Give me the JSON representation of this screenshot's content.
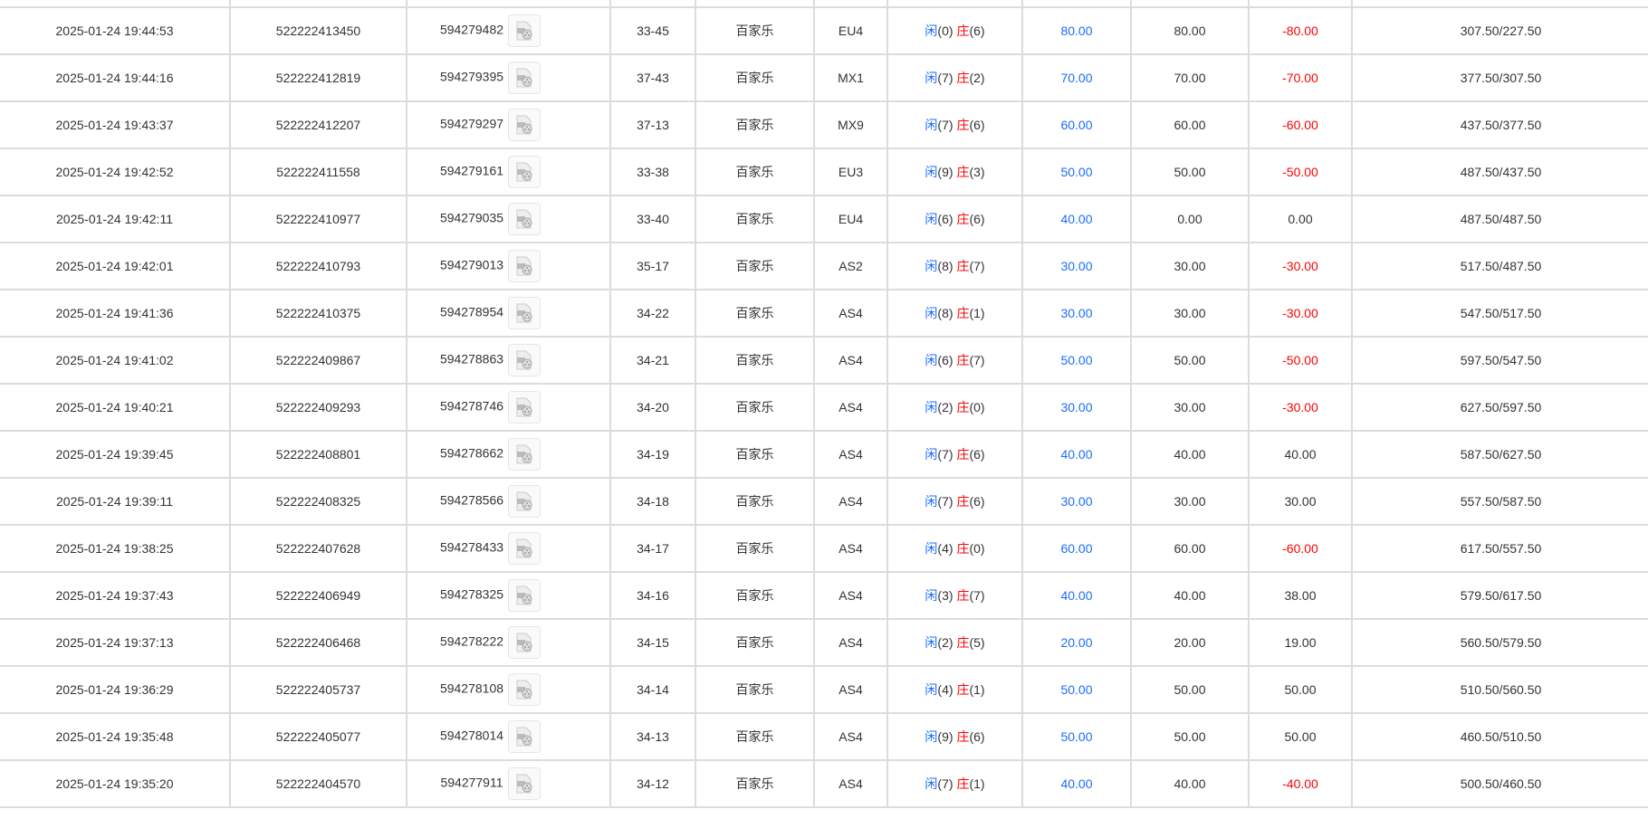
{
  "colors": {
    "player": "#1a6cff",
    "banker": "#ff0000",
    "bet": "#1a6cff",
    "negative": "#ff0000"
  },
  "labels": {
    "player": "闲",
    "banker": "庄"
  },
  "icon": "video-file-icon",
  "rows": [
    {
      "time": "2025-01-24 19:44:53",
      "order": "522222413450",
      "round": "594279482",
      "shoe": "33-45",
      "game": "百家乐",
      "table": "EU4",
      "p": "(0)",
      "b": "(6)",
      "bet": "80.00",
      "valid": "80.00",
      "win": "-80.00",
      "neg": true,
      "balance": "307.50/227.50"
    },
    {
      "time": "2025-01-24 19:44:16",
      "order": "522222412819",
      "round": "594279395",
      "shoe": "37-43",
      "game": "百家乐",
      "table": "MX1",
      "p": "(7)",
      "b": "(2)",
      "bet": "70.00",
      "valid": "70.00",
      "win": "-70.00",
      "neg": true,
      "balance": "377.50/307.50"
    },
    {
      "time": "2025-01-24 19:43:37",
      "order": "522222412207",
      "round": "594279297",
      "shoe": "37-13",
      "game": "百家乐",
      "table": "MX9",
      "p": "(7)",
      "b": "(6)",
      "bet": "60.00",
      "valid": "60.00",
      "win": "-60.00",
      "neg": true,
      "balance": "437.50/377.50"
    },
    {
      "time": "2025-01-24 19:42:52",
      "order": "522222411558",
      "round": "594279161",
      "shoe": "33-38",
      "game": "百家乐",
      "table": "EU3",
      "p": "(9)",
      "b": "(3)",
      "bet": "50.00",
      "valid": "50.00",
      "win": "-50.00",
      "neg": true,
      "balance": "487.50/437.50"
    },
    {
      "time": "2025-01-24 19:42:11",
      "order": "522222410977",
      "round": "594279035",
      "shoe": "33-40",
      "game": "百家乐",
      "table": "EU4",
      "p": "(6)",
      "b": "(6)",
      "bet": "40.00",
      "valid": "0.00",
      "win": "0.00",
      "neg": false,
      "balance": "487.50/487.50"
    },
    {
      "time": "2025-01-24 19:42:01",
      "order": "522222410793",
      "round": "594279013",
      "shoe": "35-17",
      "game": "百家乐",
      "table": "AS2",
      "p": "(8)",
      "b": "(7)",
      "bet": "30.00",
      "valid": "30.00",
      "win": "-30.00",
      "neg": true,
      "balance": "517.50/487.50"
    },
    {
      "time": "2025-01-24 19:41:36",
      "order": "522222410375",
      "round": "594278954",
      "shoe": "34-22",
      "game": "百家乐",
      "table": "AS4",
      "p": "(8)",
      "b": "(1)",
      "bet": "30.00",
      "valid": "30.00",
      "win": "-30.00",
      "neg": true,
      "balance": "547.50/517.50"
    },
    {
      "time": "2025-01-24 19:41:02",
      "order": "522222409867",
      "round": "594278863",
      "shoe": "34-21",
      "game": "百家乐",
      "table": "AS4",
      "p": "(6)",
      "b": "(7)",
      "bet": "50.00",
      "valid": "50.00",
      "win": "-50.00",
      "neg": true,
      "balance": "597.50/547.50"
    },
    {
      "time": "2025-01-24 19:40:21",
      "order": "522222409293",
      "round": "594278746",
      "shoe": "34-20",
      "game": "百家乐",
      "table": "AS4",
      "p": "(2)",
      "b": "(0)",
      "bet": "30.00",
      "valid": "30.00",
      "win": "-30.00",
      "neg": true,
      "balance": "627.50/597.50"
    },
    {
      "time": "2025-01-24 19:39:45",
      "order": "522222408801",
      "round": "594278662",
      "shoe": "34-19",
      "game": "百家乐",
      "table": "AS4",
      "p": "(7)",
      "b": "(6)",
      "bet": "40.00",
      "valid": "40.00",
      "win": "40.00",
      "neg": false,
      "balance": "587.50/627.50"
    },
    {
      "time": "2025-01-24 19:39:11",
      "order": "522222408325",
      "round": "594278566",
      "shoe": "34-18",
      "game": "百家乐",
      "table": "AS4",
      "p": "(7)",
      "b": "(6)",
      "bet": "30.00",
      "valid": "30.00",
      "win": "30.00",
      "neg": false,
      "balance": "557.50/587.50"
    },
    {
      "time": "2025-01-24 19:38:25",
      "order": "522222407628",
      "round": "594278433",
      "shoe": "34-17",
      "game": "百家乐",
      "table": "AS4",
      "p": "(4)",
      "b": "(0)",
      "bet": "60.00",
      "valid": "60.00",
      "win": "-60.00",
      "neg": true,
      "balance": "617.50/557.50"
    },
    {
      "time": "2025-01-24 19:37:43",
      "order": "522222406949",
      "round": "594278325",
      "shoe": "34-16",
      "game": "百家乐",
      "table": "AS4",
      "p": "(3)",
      "b": "(7)",
      "bet": "40.00",
      "valid": "40.00",
      "win": "38.00",
      "neg": false,
      "balance": "579.50/617.50"
    },
    {
      "time": "2025-01-24 19:37:13",
      "order": "522222406468",
      "round": "594278222",
      "shoe": "34-15",
      "game": "百家乐",
      "table": "AS4",
      "p": "(2)",
      "b": "(5)",
      "bet": "20.00",
      "valid": "20.00",
      "win": "19.00",
      "neg": false,
      "balance": "560.50/579.50"
    },
    {
      "time": "2025-01-24 19:36:29",
      "order": "522222405737",
      "round": "594278108",
      "shoe": "34-14",
      "game": "百家乐",
      "table": "AS4",
      "p": "(4)",
      "b": "(1)",
      "bet": "50.00",
      "valid": "50.00",
      "win": "50.00",
      "neg": false,
      "balance": "510.50/560.50"
    },
    {
      "time": "2025-01-24 19:35:48",
      "order": "522222405077",
      "round": "594278014",
      "shoe": "34-13",
      "game": "百家乐",
      "table": "AS4",
      "p": "(9)",
      "b": "(6)",
      "bet": "50.00",
      "valid": "50.00",
      "win": "50.00",
      "neg": false,
      "balance": "460.50/510.50"
    },
    {
      "time": "2025-01-24 19:35:20",
      "order": "522222404570",
      "round": "594277911",
      "shoe": "34-12",
      "game": "百家乐",
      "table": "AS4",
      "p": "(7)",
      "b": "(1)",
      "bet": "40.00",
      "valid": "40.00",
      "win": "-40.00",
      "neg": true,
      "balance": "500.50/460.50"
    }
  ]
}
